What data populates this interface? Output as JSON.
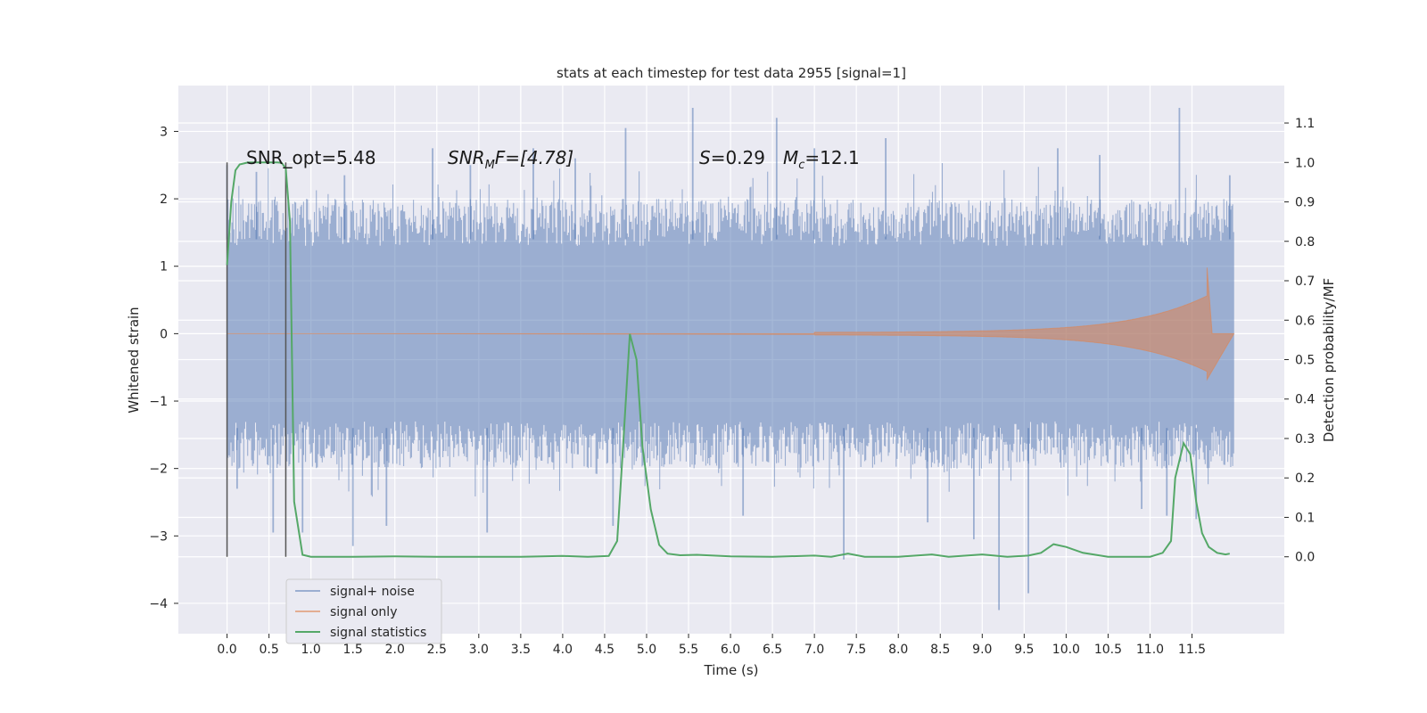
{
  "chart_data": {
    "type": "line",
    "title": "stats at each timestep for test data 2955 [signal=1]",
    "xlabel": "Time (s)",
    "ylabel": "Whitened strain",
    "y2label": "Detection probability/MF",
    "xlim": [
      -0.58,
      12.6
    ],
    "ylim": [
      -4.45,
      3.68
    ],
    "y2lim": [
      -0.195,
      1.195
    ],
    "x_ticks": [
      "0.0",
      "0.5",
      "1.0",
      "1.5",
      "2.0",
      "2.5",
      "3.0",
      "3.5",
      "4.0",
      "4.5",
      "5.0",
      "5.5",
      "6.0",
      "6.5",
      "7.0",
      "7.5",
      "8.0",
      "8.5",
      "9.0",
      "9.5",
      "10.0",
      "10.5",
      "11.0",
      "11.5"
    ],
    "y_ticks": [
      3,
      2,
      1,
      0,
      -1,
      -2,
      -3,
      -4
    ],
    "y_tick_labels": [
      "3",
      "2",
      "1",
      "0",
      "−1",
      "−2",
      "−3",
      "−4"
    ],
    "y2_ticks": [
      "1.1",
      "1.0",
      "0.9",
      "0.8",
      "0.7",
      "0.6",
      "0.5",
      "0.4",
      "0.3",
      "0.2",
      "0.1",
      "0.0"
    ],
    "grid": true,
    "legend_position": "lower-left",
    "annotations": {
      "snr_opt": "SNR_opt=5.48",
      "snr_mf": "SNR",
      "snr_mf_sub": "M",
      "snr_mf_rest": "F=[4.78]",
      "s_label": "S",
      "s_rest": "=0.29",
      "mc_label": "M",
      "mc_sub": "c",
      "mc_rest": "=12.1"
    },
    "vlines_x": [
      0.0,
      0.7
    ],
    "series": [
      {
        "name": "signal+ noise",
        "color": "#4c72b0",
        "t_range": [
          0.0,
          12.0
        ],
        "band": [
          -1.5,
          1.5
        ],
        "spikes": [
          {
            "x": 0.0,
            "y": 2.5
          },
          {
            "x": 0.12,
            "y": -2.3
          },
          {
            "x": 0.35,
            "y": 2.4
          },
          {
            "x": 0.55,
            "y": -2.95
          },
          {
            "x": 0.9,
            "y": -2.95
          },
          {
            "x": 1.4,
            "y": 2.35
          },
          {
            "x": 1.5,
            "y": -3.15
          },
          {
            "x": 1.9,
            "y": -2.85
          },
          {
            "x": 2.45,
            "y": 2.75
          },
          {
            "x": 2.9,
            "y": 2.5
          },
          {
            "x": 3.1,
            "y": -2.95
          },
          {
            "x": 3.65,
            "y": 2.75
          },
          {
            "x": 4.15,
            "y": 2.6
          },
          {
            "x": 4.6,
            "y": -2.85
          },
          {
            "x": 4.75,
            "y": 3.05
          },
          {
            "x": 5.55,
            "y": 3.35
          },
          {
            "x": 6.15,
            "y": -2.7
          },
          {
            "x": 6.55,
            "y": 3.2
          },
          {
            "x": 7.0,
            "y": 2.75
          },
          {
            "x": 7.35,
            "y": -3.35
          },
          {
            "x": 7.85,
            "y": 2.9
          },
          {
            "x": 8.35,
            "y": -2.8
          },
          {
            "x": 8.9,
            "y": -3.05
          },
          {
            "x": 9.2,
            "y": -4.1
          },
          {
            "x": 9.55,
            "y": -3.85
          },
          {
            "x": 9.9,
            "y": 2.75
          },
          {
            "x": 10.4,
            "y": 2.65
          },
          {
            "x": 10.9,
            "y": -2.6
          },
          {
            "x": 11.2,
            "y": -2.7
          },
          {
            "x": 11.35,
            "y": 3.35
          },
          {
            "x": 11.55,
            "y": -2.75
          },
          {
            "x": 11.95,
            "y": 2.35
          }
        ]
      },
      {
        "name": "signal only",
        "color": "#dd8452",
        "t_range": [
          7.0,
          12.0
        ],
        "chirp_end": 11.68,
        "peak_amplitude": 0.98
      },
      {
        "name": "signal statistics",
        "color": "#55a868",
        "x": [
          0.0,
          0.05,
          0.1,
          0.15,
          0.25,
          0.35,
          0.45,
          0.55,
          0.6,
          0.65,
          0.7,
          0.75,
          0.8,
          0.9,
          1.0,
          1.5,
          2.0,
          2.5,
          3.0,
          3.5,
          4.0,
          4.3,
          4.55,
          4.65,
          4.72,
          4.8,
          4.88,
          4.95,
          5.05,
          5.15,
          5.25,
          5.4,
          5.6,
          6.0,
          6.5,
          7.0,
          7.2,
          7.4,
          7.6,
          8.0,
          8.4,
          8.6,
          9.0,
          9.3,
          9.55,
          9.7,
          9.85,
          10.0,
          10.2,
          10.5,
          11.0,
          11.15,
          11.25,
          11.3,
          11.4,
          11.48,
          11.55,
          11.62,
          11.7,
          11.8,
          11.9,
          11.95
        ],
        "values": [
          0.74,
          0.9,
          0.98,
          0.995,
          1.0,
          1.0,
          1.0,
          1.0,
          1.0,
          0.999,
          0.985,
          0.85,
          0.14,
          0.005,
          0.0,
          0.0,
          0.001,
          0.0,
          0.0,
          0.0,
          0.002,
          0.0,
          0.002,
          0.04,
          0.28,
          0.565,
          0.5,
          0.28,
          0.12,
          0.03,
          0.008,
          0.004,
          0.005,
          0.001,
          0.0,
          0.003,
          0.0,
          0.008,
          0.0,
          0.0,
          0.006,
          0.0,
          0.006,
          0.0,
          0.003,
          0.01,
          0.032,
          0.025,
          0.01,
          0.0,
          0.0,
          0.01,
          0.04,
          0.2,
          0.288,
          0.26,
          0.14,
          0.06,
          0.025,
          0.01,
          0.006,
          0.008
        ]
      }
    ]
  }
}
